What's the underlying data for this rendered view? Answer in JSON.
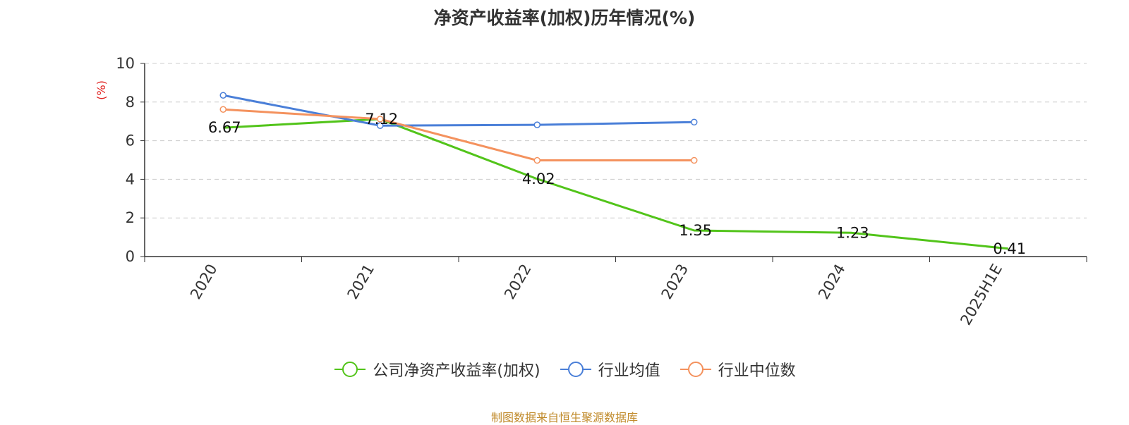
{
  "chart_data": {
    "type": "line",
    "title": "净资产收益率(加权)历年情况(%)",
    "ylabel": "(%)",
    "xlabel": "",
    "categories": [
      "2020",
      "2021",
      "2022",
      "2023",
      "2024",
      "2025H1E"
    ],
    "ylim": [
      0,
      10
    ],
    "yticks": [
      "0",
      "2",
      "4",
      "6",
      "8",
      "10"
    ],
    "grid": true,
    "legend_position": "bottom",
    "series": [
      {
        "name": "公司净资产收益率(加权)",
        "color": "#52c41a",
        "values": [
          6.67,
          7.12,
          4.02,
          1.35,
          1.23,
          0.41
        ],
        "labels": [
          "6.67",
          "7.12",
          "4.02",
          "1.35",
          "1.23",
          "0.41"
        ]
      },
      {
        "name": "行业均值",
        "color": "#4a7fd8",
        "values": [
          8.35,
          6.78,
          6.82,
          6.96,
          null,
          null
        ]
      },
      {
        "name": "行业中位数",
        "color": "#f4925e",
        "values": [
          7.62,
          7.12,
          4.98,
          4.98,
          null,
          null
        ]
      }
    ]
  },
  "source_note": "制图数据来自恒生聚源数据库"
}
